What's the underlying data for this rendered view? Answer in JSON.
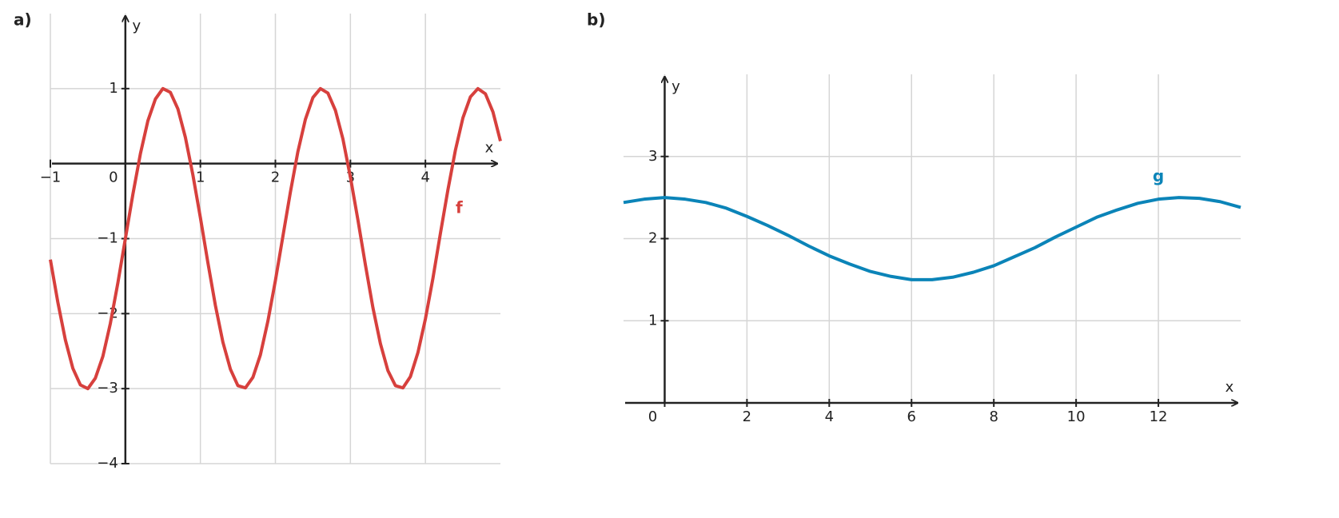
{
  "chart_data": [
    {
      "type": "line",
      "title": "a)",
      "xlabel": "x",
      "ylabel": "y",
      "x": [
        -1,
        -0.9,
        -0.8,
        -0.7,
        -0.6,
        -0.5,
        -0.4,
        -0.3,
        -0.2,
        -0.1,
        0,
        0.1,
        0.2,
        0.3,
        0.4,
        0.5,
        0.6,
        0.7,
        0.8,
        0.9,
        1,
        1.1,
        1.2,
        1.3,
        1.4,
        1.5,
        1.6,
        1.7,
        1.8,
        1.9,
        2,
        2.1,
        2.2,
        2.3,
        2.4,
        2.5,
        2.6,
        2.7,
        2.8,
        2.9,
        3,
        3.1,
        3.2,
        3.3,
        3.4,
        3.5,
        3.6,
        3.7,
        3.8,
        3.9,
        4,
        4.1,
        4.2,
        4.3,
        4.4,
        4.5,
        4.6,
        4.7,
        4.8,
        4.9,
        5
      ],
      "series": [
        {
          "name": "f",
          "color": "#d7403d",
          "values": [
            -1.28,
            -1.85,
            -2.35,
            -2.73,
            -2.95,
            -3.0,
            -2.86,
            -2.57,
            -2.13,
            -1.59,
            -1,
            -0.41,
            0.13,
            0.57,
            0.86,
            1.0,
            0.95,
            0.73,
            0.35,
            -0.15,
            -0.72,
            -1.32,
            -1.89,
            -2.38,
            -2.74,
            -2.96,
            -2.99,
            -2.85,
            -2.55,
            -2.1,
            -1.56,
            -0.97,
            -0.38,
            0.16,
            0.59,
            0.88,
            1.0,
            0.94,
            0.71,
            0.33,
            -0.18,
            -0.75,
            -1.35,
            -1.92,
            -2.4,
            -2.76,
            -2.96,
            -2.99,
            -2.84,
            -2.52,
            -2.07,
            -1.53,
            -0.93,
            -0.35,
            0.18,
            0.61,
            0.89,
            1.0,
            0.93,
            0.69,
            0.3
          ]
        }
      ],
      "xlim": [
        -1,
        5
      ],
      "ylim": [
        -4,
        2
      ],
      "xticks": [
        {
          "value": -1,
          "label": "−1"
        },
        0,
        1,
        2,
        3,
        4
      ],
      "yticks": [
        1,
        {
          "value": -1,
          "label": "−1"
        },
        {
          "value": -2,
          "label": "−2"
        },
        {
          "value": -3,
          "label": "−3"
        },
        {
          "value": -4,
          "label": "−4"
        }
      ],
      "grid": true
    },
    {
      "type": "line",
      "title": "b)",
      "xlabel": "x",
      "ylabel": "y",
      "x": [
        -1,
        -0.5,
        0,
        0.5,
        1,
        1.5,
        2,
        2.5,
        3,
        3.5,
        4,
        4.5,
        5,
        5.5,
        6,
        6.5,
        7,
        7.5,
        8,
        8.5,
        9,
        9.5,
        10,
        10.5,
        11,
        11.5,
        12,
        12.5,
        13,
        13.5,
        14
      ],
      "series": [
        {
          "name": "g",
          "color": "#0b84b8",
          "values": [
            2.44,
            2.48,
            2.5,
            2.48,
            2.44,
            2.37,
            2.27,
            2.16,
            2.04,
            1.91,
            1.79,
            1.69,
            1.6,
            1.54,
            1.5,
            1.5,
            1.53,
            1.59,
            1.67,
            1.78,
            1.89,
            2.02,
            2.14,
            2.26,
            2.35,
            2.43,
            2.48,
            2.5,
            2.49,
            2.45,
            2.38
          ]
        }
      ],
      "xlim": [
        -1,
        14
      ],
      "ylim": [
        0,
        4
      ],
      "xticks": [
        0,
        2,
        4,
        6,
        8,
        10,
        12
      ],
      "yticks": [
        1,
        2,
        3
      ],
      "grid": true
    }
  ]
}
